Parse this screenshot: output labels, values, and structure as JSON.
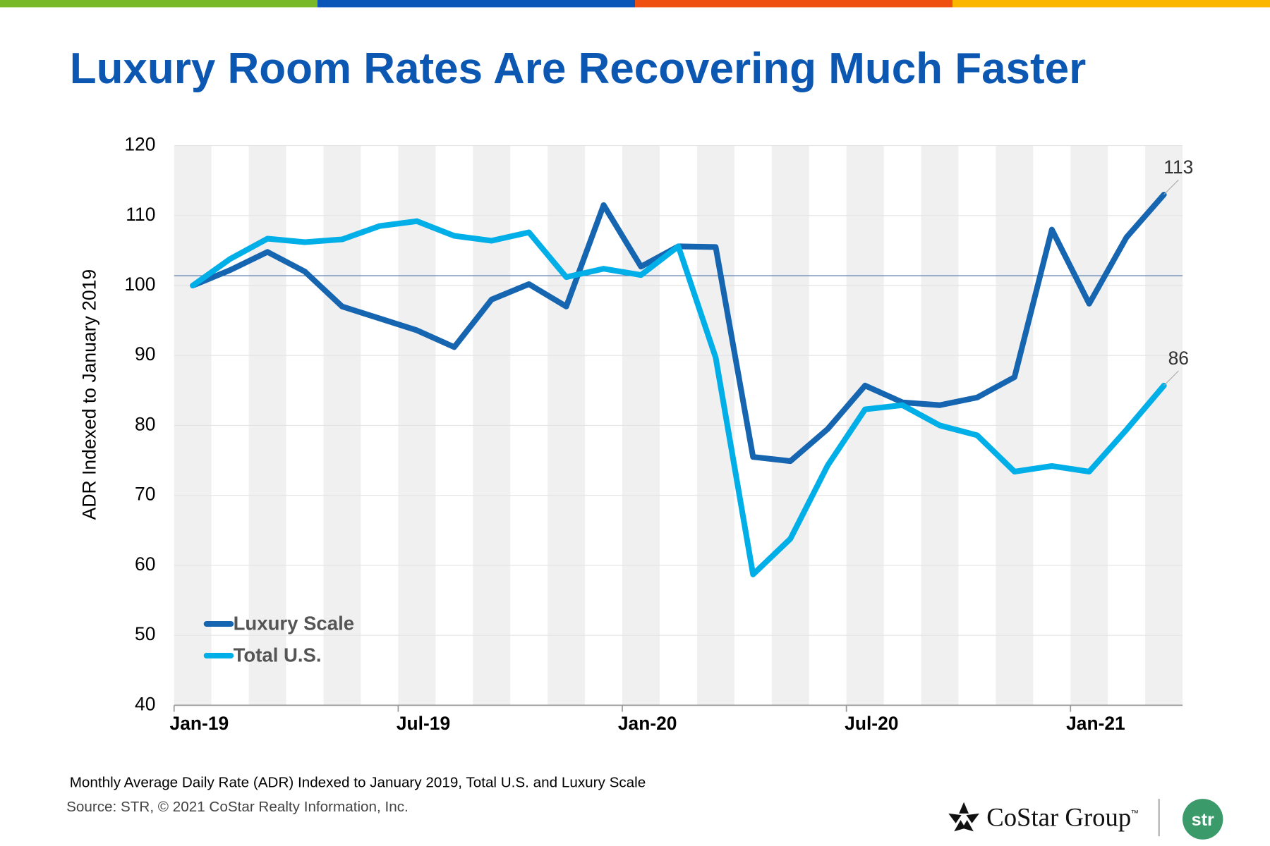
{
  "chart_data": {
    "type": "line",
    "title": "Luxury Room Rates Are Recovering Much Faster",
    "ylabel": "ADR Indexed to January 2019",
    "categories": [
      "Jan-19",
      null,
      null,
      null,
      null,
      null,
      "Jul-19",
      null,
      null,
      null,
      null,
      null,
      "Jan-20",
      null,
      null,
      null,
      null,
      null,
      "Jul-20",
      null,
      null,
      null,
      null,
      null,
      "Jan-21",
      null,
      null
    ],
    "series": [
      {
        "name": "Luxury Scale",
        "color": "#1565b0",
        "values": [
          100,
          102.2,
          104.8,
          102,
          97,
          95.3,
          93.6,
          91.2,
          98,
          100.2,
          97,
          111.5,
          102.7,
          105.6,
          105.5,
          75.5,
          74.9,
          79.5,
          85.7,
          83.3,
          82.9,
          84,
          86.9,
          108,
          97.4,
          106.9,
          113
        ],
        "value_labels": [
          null,
          null,
          null,
          null,
          null,
          null,
          null,
          null,
          null,
          null,
          null,
          null,
          null,
          null,
          null,
          null,
          null,
          null,
          null,
          null,
          null,
          null,
          null,
          null,
          null,
          null,
          "113"
        ]
      },
      {
        "name": "Total U.S.",
        "color": "#00aee8",
        "values": [
          100,
          103.8,
          106.7,
          106.2,
          106.6,
          108.5,
          109.2,
          107.1,
          106.4,
          107.6,
          101.2,
          102.4,
          101.5,
          105.6,
          89.7,
          58.7,
          63.8,
          74.3,
          82.3,
          82.9,
          80,
          78.6,
          73.4,
          74.2,
          73.4,
          79.4,
          85.7
        ],
        "value_labels": [
          null,
          null,
          null,
          null,
          null,
          null,
          null,
          null,
          null,
          null,
          null,
          null,
          null,
          null,
          null,
          null,
          null,
          null,
          null,
          null,
          null,
          null,
          null,
          null,
          null,
          null,
          "86"
        ]
      }
    ],
    "ylim": [
      40,
      120
    ],
    "yticks": [
      40,
      50,
      60,
      70,
      80,
      90,
      100,
      110,
      120
    ],
    "reference_line": 101.4,
    "grid": true,
    "legend": "lower left"
  },
  "footer": {
    "note": "Monthly Average Daily Rate (ADR) Indexed to January 2019, Total U.S. and Luxury Scale",
    "source": "Source: STR, © 2021  CoStar Realty Information, Inc.",
    "logo_text": "CoStar Group",
    "logo_tm": "™",
    "badge": "str"
  }
}
